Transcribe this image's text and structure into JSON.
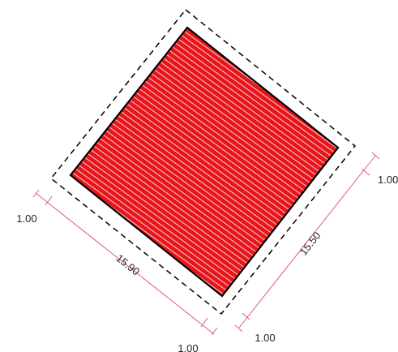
{
  "drawing": {
    "fill_color": "#e8161c",
    "hatch_color": "#ffffff",
    "outline_color": "#000000",
    "offset_color": "#000000",
    "dimension_color": "#e0529c"
  },
  "dimensions": {
    "side_a": "15.90",
    "side_b": "15.50",
    "offset_left": "1.00",
    "offset_bottom_left": "1.00",
    "offset_bottom_right": "1.00",
    "offset_right": "1.00"
  }
}
